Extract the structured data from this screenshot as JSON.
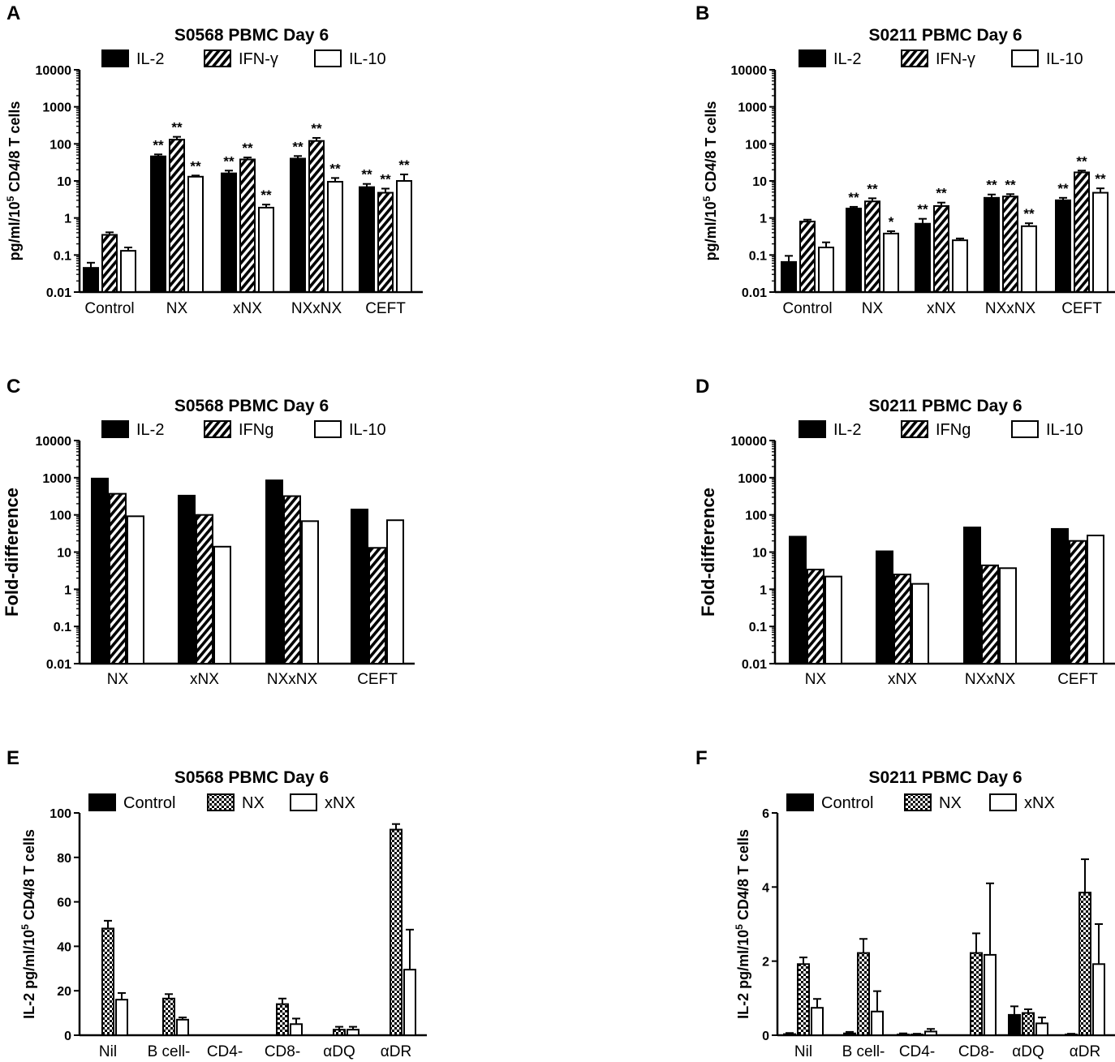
{
  "chart_data": [
    {
      "panel_label": "A",
      "type": "bar",
      "scale": "log",
      "title": "S0568 PBMC Day 6",
      "ylabel": "pg/ml/10^5 CD4/8 T cells",
      "ylabel_parts": [
        "pg/ml/10",
        "5",
        " CD4/8 T cells"
      ],
      "ylim": [
        0.01,
        10000
      ],
      "yticks": [
        "0.01",
        "0.1",
        "1",
        "10",
        "100",
        "1000",
        "10000"
      ],
      "categories": [
        "Control",
        "NX",
        "xNX",
        "NXxNX",
        "CEFT"
      ],
      "legend": [
        "IL-2",
        "IFN-γ",
        "IL-10"
      ],
      "series": [
        {
          "name": "IL-2",
          "fill": "solid",
          "values": [
            0.045,
            46,
            16,
            40,
            6.8
          ],
          "errors": [
            0.062,
            52,
            19,
            47,
            8.3
          ],
          "sig": [
            "",
            "**",
            "**",
            "**",
            "**"
          ]
        },
        {
          "name": "IFN-γ",
          "fill": "hatch",
          "values": [
            0.35,
            130,
            38,
            120,
            4.8
          ],
          "errors": [
            0.41,
            155,
            43,
            145,
            6.2
          ],
          "sig": [
            "",
            "**",
            "**",
            "**",
            "**"
          ]
        },
        {
          "name": "IL-10",
          "fill": "open",
          "values": [
            0.13,
            13,
            1.9,
            9.5,
            10
          ],
          "errors": [
            0.16,
            14,
            2.3,
            12,
            15
          ],
          "sig": [
            "",
            "**",
            "**",
            "**",
            "**"
          ]
        }
      ]
    },
    {
      "panel_label": "B",
      "type": "bar",
      "scale": "log",
      "title": "S0211 PBMC Day 6",
      "ylabel": "pg/ml/10^5 CD4/8 T cells",
      "ylabel_parts": [
        "pg/ml/10",
        "5",
        " CD4/8 T cells"
      ],
      "ylim": [
        0.01,
        10000
      ],
      "yticks": [
        "0.01",
        "0.1",
        "1",
        "10",
        "100",
        "1000",
        "10000"
      ],
      "categories": [
        "Control",
        "NX",
        "xNX",
        "NXxNX",
        "CEFT"
      ],
      "legend": [
        "IL-2",
        "IFN-γ",
        "IL-10"
      ],
      "series": [
        {
          "name": "IL-2",
          "fill": "solid",
          "values": [
            0.065,
            1.8,
            0.7,
            3.5,
            3.0
          ],
          "errors": [
            0.095,
            2.0,
            0.95,
            4.3,
            3.5
          ],
          "sig": [
            "",
            "**",
            "**",
            "**",
            "**"
          ]
        },
        {
          "name": "IFN-γ",
          "fill": "hatch",
          "values": [
            0.8,
            2.8,
            2.1,
            3.8,
            17
          ],
          "errors": [
            0.9,
            3.4,
            2.6,
            4.4,
            19
          ],
          "sig": [
            "",
            "**",
            "**",
            "**",
            "**"
          ]
        },
        {
          "name": "IL-10",
          "fill": "open",
          "values": [
            0.16,
            0.38,
            0.25,
            0.6,
            4.8
          ],
          "errors": [
            0.22,
            0.44,
            0.28,
            0.72,
            6.3
          ],
          "sig": [
            "",
            "*",
            "",
            "**",
            "**"
          ]
        }
      ]
    },
    {
      "panel_label": "C",
      "type": "bar",
      "scale": "log",
      "title": "S0568 PBMC Day 6",
      "ylabel": "Fold-difference",
      "ylim": [
        0.01,
        10000
      ],
      "yticks": [
        "0.01",
        "0.1",
        "1",
        "10",
        "100",
        "1000",
        "10000"
      ],
      "categories": [
        "NX",
        "xNX",
        "NXxNX",
        "CEFT"
      ],
      "legend": [
        "IL-2",
        "IFNg",
        "IL-10"
      ],
      "series": [
        {
          "name": "IL-2",
          "fill": "solid",
          "values": [
            950,
            330,
            850,
            140
          ]
        },
        {
          "name": "IFNg",
          "fill": "hatch",
          "values": [
            370,
            100,
            320,
            13
          ]
        },
        {
          "name": "IL-10",
          "fill": "open",
          "values": [
            92,
            14,
            68,
            72
          ]
        }
      ]
    },
    {
      "panel_label": "D",
      "type": "bar",
      "scale": "log",
      "title": "S0211 PBMC Day 6",
      "ylabel": "Fold-difference",
      "ylim": [
        0.01,
        10000
      ],
      "yticks": [
        "0.01",
        "0.1",
        "1",
        "10",
        "100",
        "1000",
        "10000"
      ],
      "categories": [
        "NX",
        "xNX",
        "NXxNX",
        "CEFT"
      ],
      "legend": [
        "IL-2",
        "IFNg",
        "IL-10"
      ],
      "series": [
        {
          "name": "IL-2",
          "fill": "solid",
          "values": [
            26,
            10.5,
            46,
            42
          ]
        },
        {
          "name": "IFNg",
          "fill": "hatch",
          "values": [
            3.4,
            2.5,
            4.4,
            20
          ]
        },
        {
          "name": "IL-10",
          "fill": "open",
          "values": [
            2.2,
            1.4,
            3.7,
            28
          ]
        }
      ]
    },
    {
      "panel_label": "E",
      "type": "bar",
      "scale": "linear",
      "title": "S0568 PBMC Day 6",
      "ylabel": "IL-2 pg/ml/10^5 CD4/8 T cells",
      "ylabel_parts": [
        "IL-2 pg/ml/10",
        "5",
        " CD4/8 T cells"
      ],
      "ylim": [
        0,
        100
      ],
      "yticks": [
        "0",
        "20",
        "40",
        "60",
        "80",
        "100"
      ],
      "categories": [
        "Nil",
        "B cell-",
        "CD4-",
        "CD8-",
        "αDQ",
        "αDR"
      ],
      "legend": [
        "Control",
        "NX",
        "xNX"
      ],
      "series": [
        {
          "name": "Control",
          "fill": "solid",
          "values": [
            0,
            0,
            0,
            0,
            0,
            0
          ],
          "errors": [
            0,
            0,
            0,
            0,
            0,
            0
          ]
        },
        {
          "name": "NX",
          "fill": "check",
          "values": [
            48,
            16.5,
            0,
            14,
            2.5,
            92.5
          ],
          "errors": [
            51.5,
            18.5,
            0,
            16.5,
            3.8,
            95
          ]
        },
        {
          "name": "xNX",
          "fill": "open",
          "values": [
            16,
            7,
            0,
            5,
            2.5,
            29.5
          ],
          "errors": [
            19,
            8,
            0,
            7.5,
            3.8,
            47.5
          ]
        }
      ]
    },
    {
      "panel_label": "F",
      "type": "bar",
      "scale": "linear",
      "title": "S0211 PBMC Day 6",
      "ylabel": "IL-2 pg/ml/10^5 CD4/8 T cells",
      "ylabel_parts": [
        "IL-2 pg/ml/10",
        "5",
        " CD4/8 T cells"
      ],
      "ylim": [
        0,
        6
      ],
      "yticks": [
        "0",
        "2",
        "4",
        "6"
      ],
      "categories": [
        "Nil",
        "B cell-",
        "CD4-",
        "CD8-",
        "αDQ",
        "αDR"
      ],
      "legend": [
        "Control",
        "NX",
        "xNX"
      ],
      "series": [
        {
          "name": "Control",
          "fill": "solid",
          "values": [
            0.03,
            0.05,
            0.02,
            0,
            0.55,
            0.02
          ],
          "errors": [
            0.06,
            0.09,
            0.05,
            0,
            0.78,
            0.04
          ]
        },
        {
          "name": "NX",
          "fill": "check",
          "values": [
            1.92,
            2.22,
            0.02,
            2.22,
            0.6,
            3.85
          ],
          "errors": [
            2.1,
            2.6,
            0.04,
            2.75,
            0.7,
            4.75
          ]
        },
        {
          "name": "xNX",
          "fill": "open",
          "values": [
            0.74,
            0.64,
            0.1,
            2.17,
            0.32,
            1.92
          ],
          "errors": [
            0.98,
            1.19,
            0.17,
            4.1,
            0.48,
            3.0
          ]
        }
      ]
    }
  ]
}
